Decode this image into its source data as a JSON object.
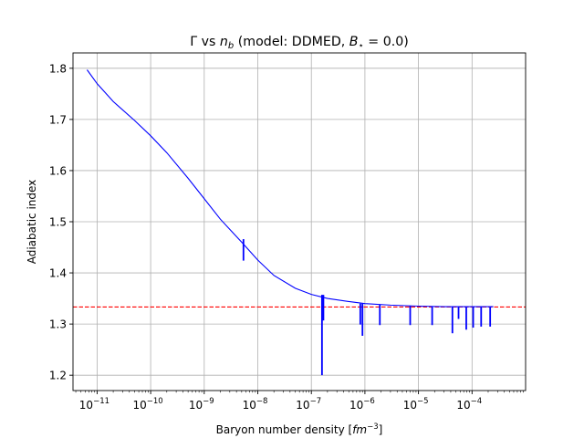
{
  "chart_data": {
    "type": "line",
    "title": {
      "prefix": "Γ vs ",
      "var": "n",
      "var_sub": "b",
      "mid": " (model: DDMED, ",
      "bvar": "B",
      "bsub": "⋆",
      "suffix": " = 0.0)"
    },
    "xlabel": {
      "text": "Baryon number density [",
      "unit": "fm",
      "unit_exp": "−3",
      "close": "]"
    },
    "ylabel": "Adiabatic index",
    "x_scale": "log",
    "xlim_log10": [
      -11.45,
      -3.0
    ],
    "ylim": [
      1.17,
      1.83
    ],
    "grid": true,
    "x_ticks": [
      {
        "exp": -11,
        "base": "10",
        "sup": "−11"
      },
      {
        "exp": -10,
        "base": "10",
        "sup": "−10"
      },
      {
        "exp": -9,
        "base": "10",
        "sup": "−9"
      },
      {
        "exp": -8,
        "base": "10",
        "sup": "−8"
      },
      {
        "exp": -7,
        "base": "10",
        "sup": "−7"
      },
      {
        "exp": -6,
        "base": "10",
        "sup": "−6"
      },
      {
        "exp": -5,
        "base": "10",
        "sup": "−5"
      },
      {
        "exp": -4,
        "base": "10",
        "sup": "−4"
      }
    ],
    "y_ticks": [
      {
        "value": 1.2,
        "label": "1.2"
      },
      {
        "value": 1.3,
        "label": "1.3"
      },
      {
        "value": 1.4,
        "label": "1.4"
      },
      {
        "value": 1.5,
        "label": "1.5"
      },
      {
        "value": 1.6,
        "label": "1.6"
      },
      {
        "value": 1.7,
        "label": "1.7"
      },
      {
        "value": 1.8,
        "label": "1.8"
      }
    ],
    "series": [
      {
        "color": "#0000ff",
        "style": "solid",
        "points": [
          [
            6.5e-12,
            1.797
          ],
          [
            1e-11,
            1.77
          ],
          [
            2e-11,
            1.735
          ],
          [
            5e-11,
            1.698
          ],
          [
            1e-10,
            1.668
          ],
          [
            2e-10,
            1.635
          ],
          [
            5e-10,
            1.585
          ],
          [
            1e-09,
            1.545
          ],
          [
            2e-09,
            1.505
          ],
          [
            5e-09,
            1.46
          ],
          [
            1e-08,
            1.425
          ],
          [
            2e-08,
            1.395
          ],
          [
            5e-08,
            1.37
          ],
          [
            1e-07,
            1.358
          ],
          [
            2e-07,
            1.35
          ],
          [
            5e-07,
            1.344
          ],
          [
            1e-06,
            1.34
          ],
          [
            3e-06,
            1.337
          ],
          [
            1e-05,
            1.335
          ],
          [
            3e-05,
            1.334
          ],
          [
            0.0001,
            1.334
          ],
          [
            0.00025,
            1.334
          ]
        ],
        "spikes": [
          {
            "x": 5.4e-09,
            "y_top": 1.466,
            "y_bottom": 1.424
          },
          {
            "x": 1.58e-07,
            "y_top": 1.357,
            "y_bottom": 1.2
          },
          {
            "x": 1.68e-07,
            "y_top": 1.357,
            "y_bottom": 1.307
          },
          {
            "x": 8.2e-07,
            "y_top": 1.34,
            "y_bottom": 1.299
          },
          {
            "x": 9e-07,
            "y_top": 1.34,
            "y_bottom": 1.277
          },
          {
            "x": 1.9e-06,
            "y_top": 1.338,
            "y_bottom": 1.298
          },
          {
            "x": 7e-06,
            "y_top": 1.336,
            "y_bottom": 1.298
          },
          {
            "x": 1.8e-05,
            "y_top": 1.335,
            "y_bottom": 1.298
          },
          {
            "x": 4.3e-05,
            "y_top": 1.334,
            "y_bottom": 1.282
          },
          {
            "x": 5.6e-05,
            "y_top": 1.334,
            "y_bottom": 1.31
          },
          {
            "x": 7.8e-05,
            "y_top": 1.334,
            "y_bottom": 1.289
          },
          {
            "x": 0.000105,
            "y_top": 1.334,
            "y_bottom": 1.293
          },
          {
            "x": 0.000148,
            "y_top": 1.334,
            "y_bottom": 1.295
          },
          {
            "x": 0.000218,
            "y_top": 1.334,
            "y_bottom": 1.295
          }
        ]
      }
    ],
    "reference_line": {
      "y": 1.3333,
      "color": "#ff0000",
      "style": "dashed"
    }
  }
}
